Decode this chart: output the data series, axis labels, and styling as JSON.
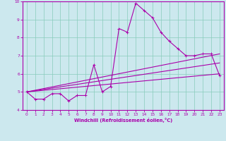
{
  "xlabel": "Windchill (Refroidissement éolien,°C)",
  "background_color": "#cce8ee",
  "line_color": "#aa00aa",
  "xlim": [
    -0.5,
    23.5
  ],
  "ylim": [
    4,
    10
  ],
  "xticks": [
    0,
    1,
    2,
    3,
    4,
    5,
    6,
    7,
    8,
    9,
    10,
    11,
    12,
    13,
    14,
    15,
    16,
    17,
    18,
    19,
    20,
    21,
    22,
    23
  ],
  "yticks": [
    4,
    5,
    6,
    7,
    8,
    9,
    10
  ],
  "series1_x": [
    0,
    1,
    2,
    3,
    4,
    5,
    6,
    7,
    8,
    9,
    10,
    11,
    12,
    13,
    14,
    15,
    16,
    17,
    18,
    19,
    20,
    21,
    22,
    23
  ],
  "series1_y": [
    5.0,
    4.6,
    4.6,
    4.9,
    4.9,
    4.5,
    4.8,
    4.8,
    6.5,
    5.0,
    5.3,
    8.5,
    8.3,
    9.9,
    9.5,
    9.1,
    8.3,
    7.8,
    7.4,
    7.0,
    7.0,
    7.1,
    7.1,
    5.9
  ],
  "series2_x": [
    0,
    23
  ],
  "series2_y": [
    5.0,
    7.1
  ],
  "series3_x": [
    0,
    23
  ],
  "series3_y": [
    5.0,
    6.6
  ],
  "series4_x": [
    0,
    23
  ],
  "series4_y": [
    5.0,
    6.0
  ]
}
